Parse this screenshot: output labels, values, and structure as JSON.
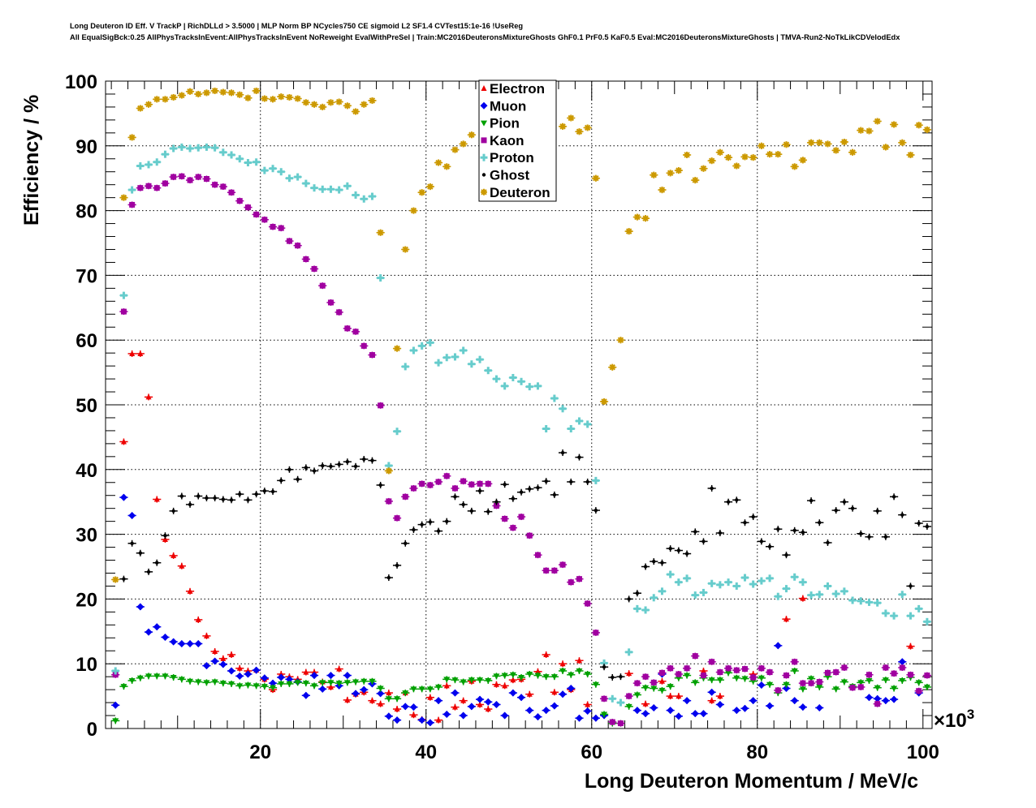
{
  "chart_data": {
    "type": "scatter",
    "title_lines": [
      "Long Deuteron ID Eff. V TrackP | RichDLLd > 3.5000 | MLP Norm BP NCycles750 CE sigmoid L2 SF1.4 CVTest15:1e-16 !UseReg",
      "All EqualSigBck:0.25 AllPhysTracksInEvent:AllPhysTracksInEvent NoReweight EvalWithPreSel | Train:MC2016DeuteronsMixtureGhosts GhF0.1 PrF0.5 KaF0.5 Eval:MC2016DeuteronsMixtureGhosts | TMVA-Run2-NoTkLikCDVelodEdx"
    ],
    "xlabel": "Long Deuteron Momentum / MeV/c",
    "ylabel": "Efficiency / %",
    "x_multiplier": "×10",
    "x_multiplier_exp": "3",
    "xlim": [
      1.3,
      101.1
    ],
    "ylim": [
      0,
      100
    ],
    "x_ticks": [
      "20",
      "40",
      "60",
      "80",
      "100"
    ],
    "y_ticks": [
      "0",
      "10",
      "20",
      "30",
      "40",
      "50",
      "60",
      "70",
      "80",
      "90",
      "100"
    ],
    "grid": true,
    "legend_position": "top-center",
    "x_start": 2.5,
    "x_step": 1,
    "series": [
      {
        "name": "Electron",
        "color": "#ee0000",
        "marker": "triangle-up",
        "values": [
          null,
          44.3,
          57.9,
          57.9,
          51.2,
          35.4,
          29.2,
          26.7,
          25.1,
          21.2,
          16.8,
          14.3,
          11.9,
          10.8,
          11.4,
          9.3,
          8.9,
          9.0,
          7.6,
          6.0,
          8.4,
          8.0,
          7.6,
          8.7,
          8.7,
          7.2,
          6.4,
          9.2,
          4.4,
          5.3,
          5.6,
          4.3,
          3.8,
          5.5,
          3.0,
          5.5,
          2.1,
          1.4,
          4.8,
          1.3,
          6.6,
          3.3,
          4.3,
          7.3,
          3.7,
          3.0,
          6.8,
          6.6,
          7.5,
          7.6,
          5.3,
          8.8,
          11.4,
          5.6,
          10.0,
          6.0,
          10.5,
          3.7,
          null,
          null,
          null,
          null,
          8.5,
          null,
          3.8,
          null,
          7.3,
          5.0,
          5.0,
          null,
          null,
          8.9,
          4.3,
          5.0,
          null,
          null,
          null,
          8.4,
          null,
          null,
          null,
          16.9,
          null,
          20.1,
          null,
          null,
          null,
          null,
          null,
          null,
          null,
          null,
          null,
          null,
          null,
          null,
          12.7,
          null,
          null
        ]
      },
      {
        "name": "Muon",
        "color": "#0000ee",
        "marker": "circle",
        "values": [
          3.6,
          35.7,
          32.9,
          18.8,
          14.9,
          15.7,
          14.1,
          13.4,
          13.1,
          13.1,
          13.1,
          9.7,
          10.4,
          9.9,
          8.9,
          8.1,
          8.4,
          9.0,
          7.8,
          7.0,
          7.9,
          7.6,
          7.2,
          5.1,
          8.2,
          6.1,
          8.2,
          6.6,
          8.2,
          5.4,
          6.0,
          6.9,
          5.4,
          1.9,
          1.3,
          3.4,
          3.3,
          1.3,
          0.9,
          4.3,
          2.2,
          5.5,
          2.0,
          3.4,
          4.5,
          4.1,
          3.7,
          2.0,
          5.5,
          4.8,
          2.8,
          1.8,
          2.8,
          3.5,
          5.3,
          6.2,
          1.6,
          2.7,
          1.6,
          2.0,
          null,
          null,
          null,
          2.8,
          2.3,
          3.2,
          8.4,
          2.8,
          1.9,
          4.3,
          2.3,
          2.3,
          5.6,
          3.7,
          null,
          2.8,
          3.1,
          4.3,
          6.7,
          3.5,
          12.8,
          6.2,
          4.3,
          3.3,
          null,
          3.2,
          null,
          null,
          null,
          null,
          null,
          4.8,
          4.6,
          4.3,
          4.5,
          10.3,
          null,
          5.5,
          null
        ]
      },
      {
        "name": "Pion",
        "color": "#00a000",
        "marker": "triangle-down",
        "values": [
          1.2,
          6.5,
          7.4,
          7.8,
          8.1,
          8.1,
          8.1,
          7.9,
          7.6,
          7.3,
          7.2,
          7.1,
          7.2,
          7.0,
          6.9,
          6.6,
          6.7,
          6.6,
          6.5,
          6.3,
          6.9,
          6.9,
          7.1,
          7.0,
          6.6,
          7.1,
          7.1,
          7.0,
          7.1,
          7.2,
          7.3,
          7.3,
          6.2,
          4.6,
          4.6,
          5.5,
          6.1,
          6.1,
          6.1,
          6.4,
          7.6,
          7.5,
          7.2,
          7.5,
          7.5,
          7.4,
          8.1,
          8.2,
          8.3,
          7.9,
          8.4,
          8.2,
          8.0,
          8.0,
          8.9,
          8.3,
          8.9,
          8.4,
          6.8,
          2.2,
          0.8,
          0.8,
          3.4,
          5.2,
          6.3,
          6.2,
          5.9,
          6.5,
          7.8,
          8.2,
          7.1,
          7.8,
          7.5,
          7.5,
          8.6,
          7.8,
          7.7,
          7.3,
          7.8,
          6.8,
          5.5,
          6.8,
          8.9,
          6.1,
          7.7,
          6.4,
          8.0,
          6.1,
          7.2,
          6.5,
          7.1,
          7.4,
          6.3,
          7.5,
          6.2,
          7.4,
          7.9,
          7.1,
          6.4
        ]
      },
      {
        "name": "Kaon",
        "color": "#a000a0",
        "marker": "square",
        "values": [
          8.3,
          64.4,
          80.9,
          83.5,
          83.8,
          83.5,
          84.2,
          85.2,
          85.3,
          84.7,
          85.2,
          84.9,
          84.0,
          83.7,
          82.8,
          81.5,
          80.5,
          79.4,
          78.6,
          77.5,
          77.3,
          75.3,
          74.6,
          72.5,
          71.0,
          68.4,
          65.8,
          64.3,
          61.8,
          61.3,
          59.1,
          57.7,
          49.9,
          35.1,
          32.5,
          35.8,
          37.1,
          37.8,
          37.6,
          38.1,
          39.0,
          37.1,
          38.2,
          37.7,
          37.8,
          37.8,
          34.4,
          32.4,
          31.0,
          32.7,
          29.8,
          26.8,
          24.4,
          24.4,
          25.3,
          22.6,
          23.1,
          19.3,
          14.8,
          4.6,
          1.0,
          0.8,
          5.0,
          7.0,
          8.0,
          7.1,
          8.6,
          9.3,
          8.4,
          9.3,
          11.2,
          8.2,
          10.3,
          8.7,
          9.3,
          9.0,
          9.2,
          7.9,
          9.3,
          8.7,
          5.9,
          8.2,
          10.3,
          7.0,
          7.0,
          7.2,
          8.6,
          8.7,
          9.4,
          6.3,
          6.4,
          8.3,
          3.8,
          9.4,
          8.5,
          9.4,
          8.3,
          5.8,
          8.2
        ]
      },
      {
        "name": "Proton",
        "color": "#66cccc",
        "marker": "cross",
        "values": [
          8.9,
          66.9,
          83.2,
          86.9,
          87.1,
          87.5,
          88.7,
          89.6,
          89.8,
          89.6,
          89.7,
          89.8,
          89.7,
          89.0,
          88.6,
          88.0,
          87.4,
          87.5,
          86.2,
          86.5,
          86.0,
          85.0,
          85.2,
          84.2,
          83.5,
          83.3,
          83.3,
          83.2,
          83.8,
          82.4,
          81.8,
          82.2,
          69.6,
          40.6,
          45.9,
          55.9,
          58.4,
          59.1,
          59.6,
          56.5,
          57.3,
          57.4,
          58.4,
          56.3,
          57.0,
          55.3,
          54.0,
          52.9,
          54.2,
          53.6,
          52.8,
          52.9,
          46.3,
          51.0,
          49.4,
          46.3,
          47.5,
          47.0,
          38.3,
          10.1,
          4.6,
          4.0,
          11.8,
          18.5,
          18.3,
          20.2,
          21.2,
          23.8,
          22.6,
          23.2,
          20.6,
          21.0,
          22.4,
          22.2,
          22.6,
          22.0,
          23.3,
          22.3,
          22.8,
          23.2,
          20.4,
          21.6,
          23.4,
          22.6,
          20.6,
          20.7,
          22.0,
          20.8,
          21.2,
          19.8,
          19.7,
          19.5,
          19.4,
          17.8,
          17.4,
          20.7,
          17.4,
          18.5,
          16.5
        ]
      },
      {
        "name": "Ghost",
        "color": "#000000",
        "marker": "dot",
        "values": [
          null,
          23.1,
          28.6,
          27.1,
          24.2,
          25.6,
          29.8,
          33.6,
          35.9,
          34.6,
          35.9,
          35.6,
          35.6,
          35.4,
          35.3,
          36.2,
          35.3,
          36.2,
          36.7,
          36.6,
          38.3,
          40.0,
          38.5,
          40.3,
          39.8,
          40.6,
          40.5,
          40.8,
          41.2,
          40.5,
          41.6,
          41.4,
          37.6,
          23.3,
          25.2,
          28.6,
          30.7,
          31.5,
          31.9,
          30.5,
          32.0,
          35.8,
          34.6,
          33.6,
          36.7,
          33.5,
          35.0,
          37.7,
          35.5,
          36.5,
          37.0,
          37.2,
          38.2,
          36.1,
          42.6,
          38.1,
          41.9,
          38.1,
          33.7,
          9.5,
          7.9,
          8.0,
          20.0,
          20.9,
          25.0,
          25.8,
          25.6,
          27.8,
          27.5,
          27.0,
          30.4,
          28.9,
          37.1,
          30.2,
          35.0,
          35.3,
          31.8,
          32.7,
          28.9,
          28.1,
          30.8,
          26.8,
          30.6,
          30.3,
          35.2,
          31.8,
          28.7,
          33.7,
          35.0,
          34.0,
          30.1,
          29.6,
          33.6,
          29.6,
          35.8,
          33.0,
          22.0,
          31.7,
          31.2
        ]
      },
      {
        "name": "Deuteron",
        "color": "#cc9900",
        "marker": "star",
        "values": [
          23.0,
          82.0,
          91.3,
          95.8,
          96.4,
          97.2,
          97.2,
          97.5,
          97.8,
          98.4,
          98.0,
          98.2,
          98.5,
          98.3,
          98.2,
          97.9,
          97.4,
          98.5,
          97.3,
          97.2,
          97.6,
          97.5,
          97.3,
          96.7,
          96.4,
          96.0,
          96.7,
          96.8,
          96.2,
          95.3,
          96.4,
          97.0,
          76.6,
          39.8,
          58.7,
          74.0,
          80.0,
          82.8,
          83.7,
          87.4,
          86.8,
          89.4,
          90.3,
          91.7,
          null,
          null,
          null,
          null,
          null,
          null,
          null,
          null,
          null,
          null,
          93.0,
          94.3,
          92.2,
          92.8,
          85.0,
          50.5,
          55.8,
          60.0,
          76.8,
          79.0,
          78.8,
          85.5,
          83.2,
          85.8,
          86.2,
          88.6,
          84.7,
          86.5,
          87.7,
          89.0,
          88.2,
          86.9,
          88.3,
          88.2,
          90.0,
          88.7,
          88.7,
          90.2,
          86.8,
          87.8,
          90.5,
          90.5,
          90.3,
          89.3,
          90.6,
          89.0,
          92.4,
          92.3,
          93.8,
          89.8,
          93.3,
          90.5,
          88.6,
          93.2,
          92.5
        ]
      }
    ]
  }
}
